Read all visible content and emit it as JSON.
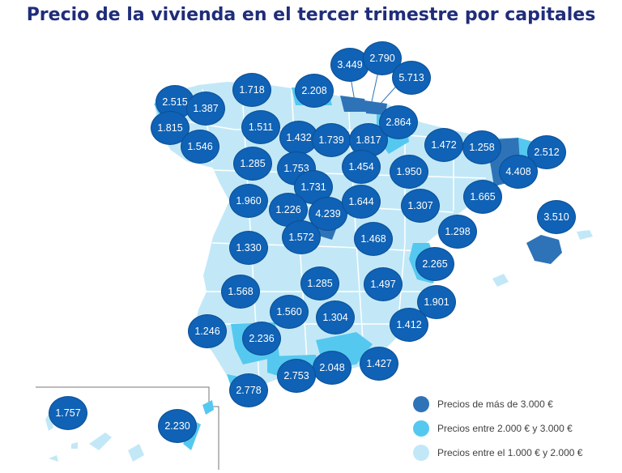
{
  "title": "Precio de la vivienda en el tercer trimestre por capitales",
  "colors": {
    "dark": "#2e73b8",
    "mid": "#55c8f0",
    "light": "#c2e8f7",
    "badge": "#0f62b5"
  },
  "labels": [
    {
      "id": "bilbao",
      "value": "3.449"
    },
    {
      "id": "vitoria",
      "value": "2.790"
    },
    {
      "id": "san-sebastian",
      "value": "5.713"
    },
    {
      "id": "a-coruna",
      "value": "2.515"
    },
    {
      "id": "lugo",
      "value": "1.387"
    },
    {
      "id": "oviedo",
      "value": "1.718"
    },
    {
      "id": "santander",
      "value": "2.208"
    },
    {
      "id": "pontevedra",
      "value": "1.815"
    },
    {
      "id": "ourense",
      "value": "1.546"
    },
    {
      "id": "leon",
      "value": "1.511"
    },
    {
      "id": "palencia",
      "value": "1.432"
    },
    {
      "id": "burgos",
      "value": "1.739"
    },
    {
      "id": "logrono",
      "value": "1.817"
    },
    {
      "id": "pamplona",
      "value": "2.864"
    },
    {
      "id": "huesca",
      "value": "1.472"
    },
    {
      "id": "lleida",
      "value": "1.258"
    },
    {
      "id": "girona",
      "value": "2.512"
    },
    {
      "id": "barcelona",
      "value": "4.408"
    },
    {
      "id": "zamora",
      "value": "1.285"
    },
    {
      "id": "valladolid",
      "value": "1.753"
    },
    {
      "id": "soria",
      "value": "1.454"
    },
    {
      "id": "zaragoza",
      "value": "1.950"
    },
    {
      "id": "segovia",
      "value": "1.731"
    },
    {
      "id": "salamanca",
      "value": "1.960"
    },
    {
      "id": "avila",
      "value": "1.226"
    },
    {
      "id": "madrid",
      "value": "4.239"
    },
    {
      "id": "guadalajara",
      "value": "1.644"
    },
    {
      "id": "teruel",
      "value": "1.307"
    },
    {
      "id": "tarragona",
      "value": "1.665"
    },
    {
      "id": "palma",
      "value": "3.510"
    },
    {
      "id": "castellon",
      "value": "1.298"
    },
    {
      "id": "toledo",
      "value": "1.572"
    },
    {
      "id": "cuenca",
      "value": "1.468"
    },
    {
      "id": "caceres",
      "value": "1.330"
    },
    {
      "id": "valencia",
      "value": "2.265"
    },
    {
      "id": "badajoz",
      "value": "1.568"
    },
    {
      "id": "ciudad-real",
      "value": "1.285"
    },
    {
      "id": "albacete",
      "value": "1.497"
    },
    {
      "id": "alicante",
      "value": "1.901"
    },
    {
      "id": "huelva",
      "value": "1.246"
    },
    {
      "id": "cordoba",
      "value": "1.560"
    },
    {
      "id": "jaen",
      "value": "1.304"
    },
    {
      "id": "murcia",
      "value": "1.412"
    },
    {
      "id": "sevilla",
      "value": "2.236"
    },
    {
      "id": "granada",
      "value": "2.048"
    },
    {
      "id": "almeria",
      "value": "1.427"
    },
    {
      "id": "malaga",
      "value": "2.753"
    },
    {
      "id": "cadiz",
      "value": "2.778"
    },
    {
      "id": "santa-cruz-tenerife",
      "value": "1.757"
    },
    {
      "id": "las-palmas",
      "value": "2.230"
    }
  ],
  "legend": [
    {
      "label": "Precios de más de 3.000 €",
      "color": "#2e73b8"
    },
    {
      "label": "Precios entre 2.000 € y 3.000 €",
      "color": "#55c8f0"
    },
    {
      "label": "Precios entre el 1.000 € y 2.000 €",
      "color": "#c2e8f7"
    }
  ]
}
